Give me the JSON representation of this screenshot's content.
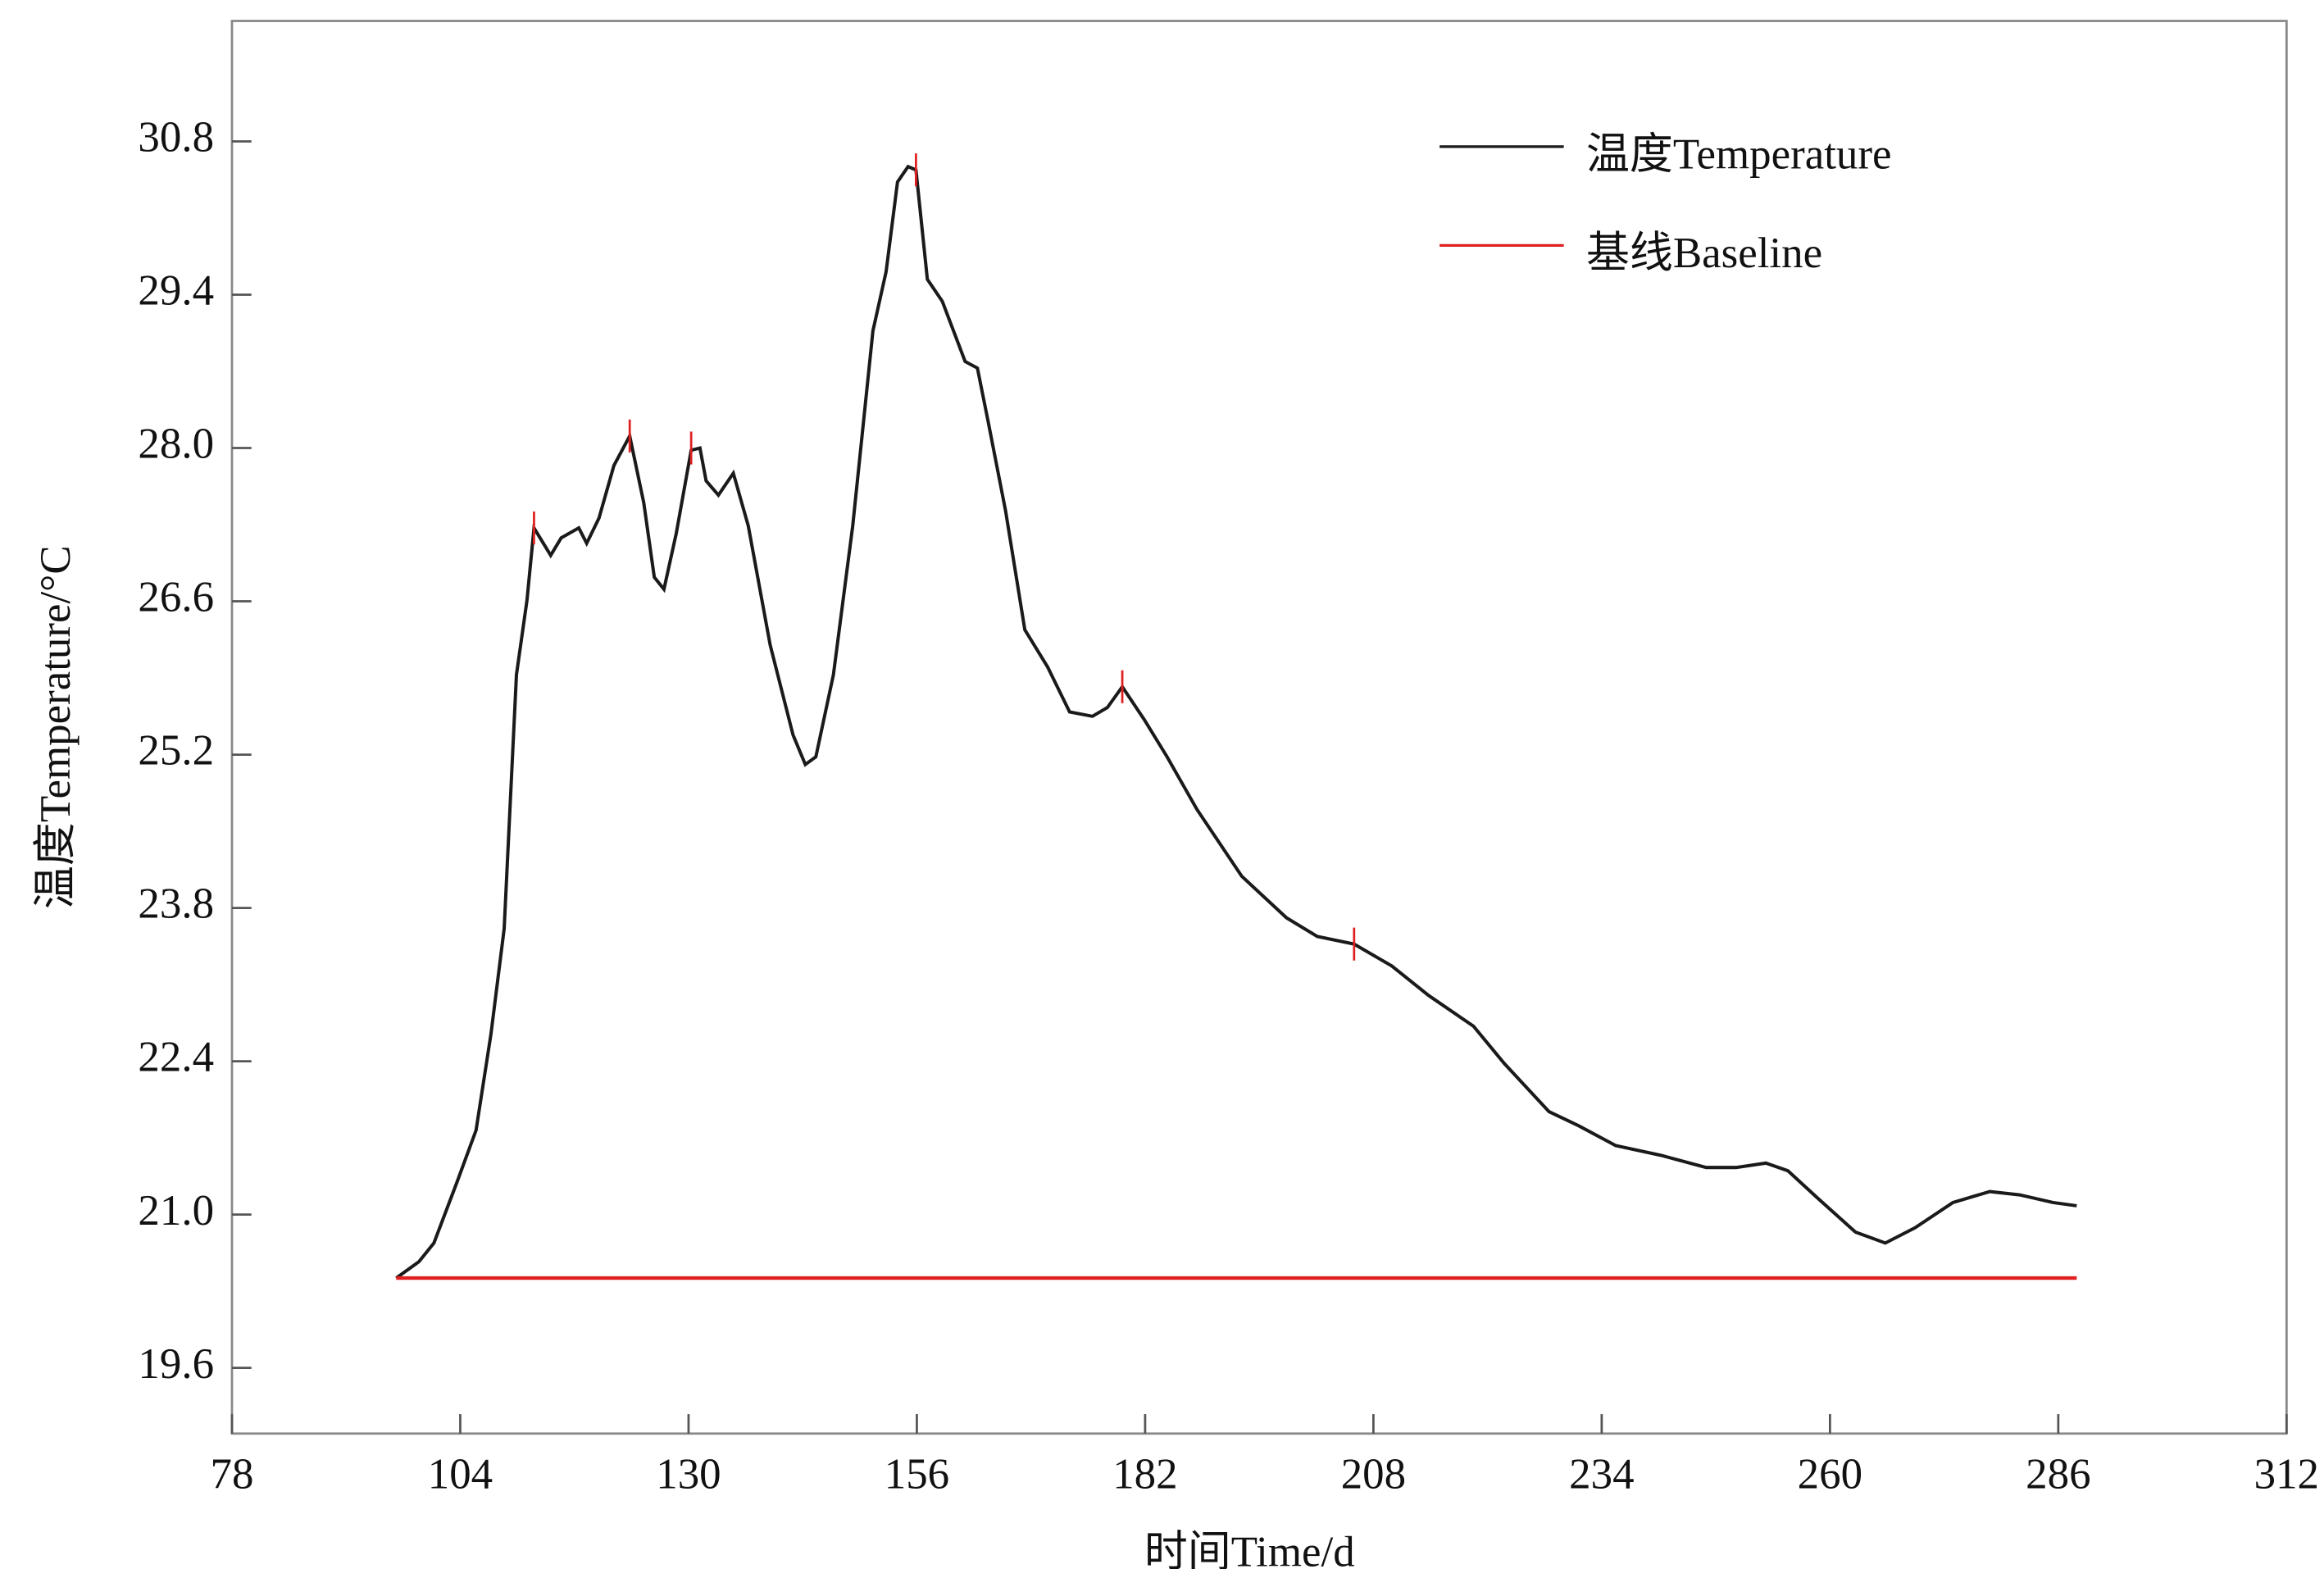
{
  "chart_data": {
    "type": "line",
    "x_label": "时间Time/d",
    "y_label": "温度Temperature/°C",
    "xlim": [
      78,
      312
    ],
    "xticks": [
      78,
      104,
      130,
      156,
      182,
      208,
      234,
      260,
      286,
      312
    ],
    "ylim": [
      19.0,
      31.9
    ],
    "yticks": [
      19.6,
      {
        "value": 21,
        "label": "21.0"
      },
      22.4,
      23.8,
      25.2,
      26.6,
      {
        "value": 28,
        "label": "28.0"
      },
      29.4,
      30.8
    ],
    "legend": "upper right",
    "series": [
      {
        "name": "温度Temperature",
        "color": "#1a1a1a",
        "x": [
          96.7,
          99.3,
          101.0,
          103.6,
          105.8,
          107.5,
          109.0,
          110.4,
          111.6,
          112.4,
          114.3,
          115.5,
          117.5,
          118.4,
          119.8,
          121.5,
          123.3,
          124.9,
          126.1,
          127.2,
          128.6,
          130.3,
          131.3,
          132.0,
          133.4,
          135.1,
          136.8,
          139.3,
          141.9,
          143.3,
          144.5,
          146.5,
          148.7,
          151.0,
          152.5,
          153.8,
          155.0,
          155.9,
          157.2,
          158.9,
          161.5,
          162.9,
          164.1,
          166.1,
          168.3,
          170.9,
          173.4,
          176.0,
          177.7,
          179.4,
          181.9,
          184.5,
          187.9,
          193.0,
          198.1,
          201.6,
          205.8,
          210.1,
          214.3,
          219.4,
          222.9,
          228.0,
          231.4,
          235.6,
          240.8,
          245.9,
          249.3,
          252.7,
          255.2,
          258.6,
          262.9,
          266.3,
          269.7,
          274.0,
          278.2,
          281.6,
          285.4,
          288.1
        ],
        "values": [
          20.42,
          20.57,
          20.74,
          21.29,
          21.77,
          22.65,
          23.61,
          25.93,
          26.61,
          27.27,
          27.02,
          27.18,
          27.27,
          27.13,
          27.36,
          27.84,
          28.11,
          27.5,
          26.82,
          26.71,
          27.22,
          27.98,
          28.0,
          27.7,
          27.57,
          27.77,
          27.29,
          26.2,
          25.38,
          25.11,
          25.18,
          25.93,
          27.29,
          29.07,
          29.61,
          30.43,
          30.57,
          30.54,
          29.54,
          29.34,
          28.79,
          28.73,
          28.25,
          27.43,
          26.34,
          26.0,
          25.59,
          25.55,
          25.63,
          25.82,
          25.52,
          25.18,
          24.7,
          24.09,
          23.71,
          23.54,
          23.47,
          23.27,
          23.0,
          22.72,
          22.38,
          21.94,
          21.81,
          21.63,
          21.54,
          21.43,
          21.43,
          21.47,
          21.4,
          21.15,
          20.84,
          20.74,
          20.88,
          21.11,
          21.21,
          21.18,
          21.11,
          21.08
        ]
      },
      {
        "name": "基线Baseline",
        "color": "#e02020",
        "x": [
          96.7,
          288.1
        ],
        "values": [
          20.42,
          20.42
        ]
      }
    ],
    "markers": {
      "color": "#e02020",
      "x": [
        112.4,
        123.3,
        130.3,
        155.9,
        179.4,
        205.8
      ],
      "values": [
        27.27,
        28.11,
        28.0,
        30.54,
        25.82,
        23.47
      ]
    }
  }
}
